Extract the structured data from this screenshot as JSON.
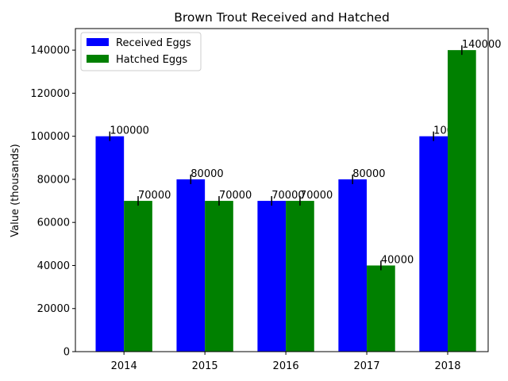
{
  "chart_data": {
    "type": "bar",
    "title": "Brown Trout Received and Hatched",
    "xlabel": "",
    "ylabel": "Value (thousands)",
    "categories": [
      "2014",
      "2015",
      "2016",
      "2017",
      "2018"
    ],
    "series": [
      {
        "name": "Received Eggs",
        "color": "#0000ff",
        "values": [
          100000,
          80000,
          70000,
          80000,
          100000
        ],
        "labels": [
          "100000",
          "80000",
          "70000",
          "80000",
          "100000"
        ]
      },
      {
        "name": "Hatched Eggs",
        "color": "#008000",
        "values": [
          70000,
          70000,
          70000,
          40000,
          140000
        ],
        "labels": [
          "70000",
          "70000",
          "70000",
          "40000",
          "140000"
        ]
      }
    ],
    "ylim": [
      0,
      150000
    ],
    "yticks": [
      0,
      20000,
      40000,
      60000,
      80000,
      100000,
      120000,
      140000
    ],
    "ytick_labels": [
      "0",
      "20000",
      "40000",
      "60000",
      "80000",
      "100000",
      "120000",
      "140000"
    ],
    "error_bars": true,
    "grid": false,
    "legend_position": "top-left"
  }
}
